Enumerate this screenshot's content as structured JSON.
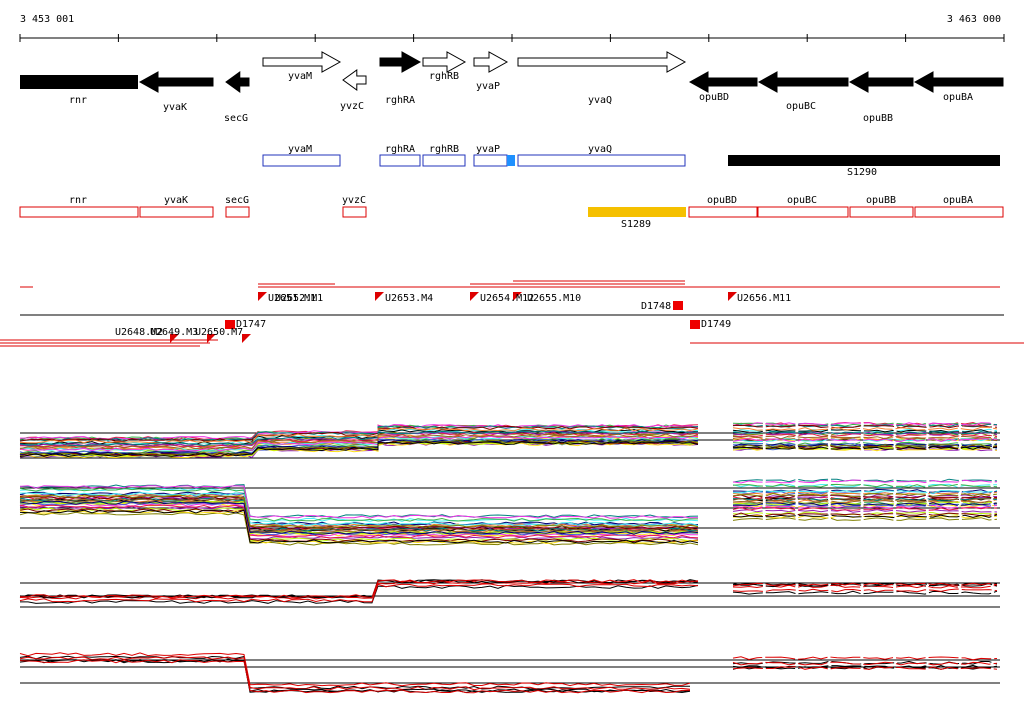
{
  "ruler": {
    "start": "3 453 001",
    "end": "3 463 000"
  },
  "gene_track": [
    "rnr",
    "yvaK",
    "secG",
    "yvaM",
    "yvzC",
    "rghRA",
    "rghRB",
    "yvaP",
    "yvaQ",
    "opuBD",
    "opuBC",
    "opuBB",
    "opuBA"
  ],
  "annotation_track": {
    "genes": [
      "yvaM",
      "rghRA",
      "rghRB",
      "yvaP",
      "yvaQ"
    ],
    "feature": "S1290"
  },
  "red_track": {
    "genes": [
      "rnr",
      "yvaK",
      "secG",
      "yvzC",
      "opuBD",
      "opuBC",
      "opuBB",
      "opuBA"
    ],
    "feature": "S1289"
  },
  "transcription_units": [
    "U2648.M2",
    "U2649.M3",
    "U2650.M7",
    "D1747",
    "U2651.M1",
    "U2652.M1",
    "U2653.M4",
    "U2654.M12",
    "U2655.M10",
    "D1748",
    "D1749",
    "U2656.M11"
  ]
}
